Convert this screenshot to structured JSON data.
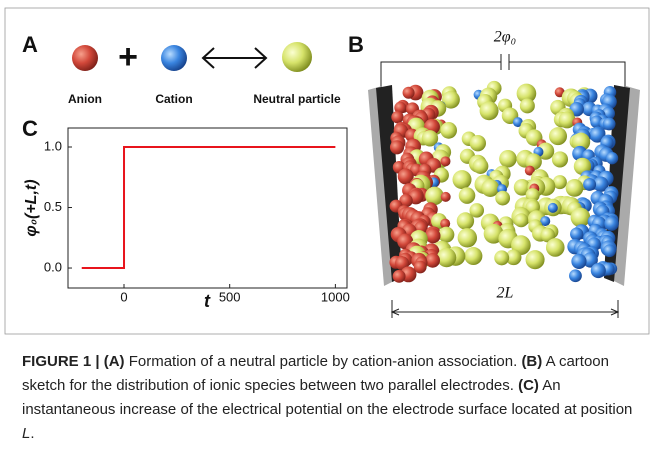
{
  "panels": {
    "A": {
      "label": "A",
      "anion": "Anion",
      "cation": "Cation",
      "neutral": "Neutral particle"
    },
    "B": {
      "label": "B",
      "voltage": "2φ₀",
      "distance": "2L"
    },
    "C": {
      "label": "C"
    }
  },
  "chart_data": {
    "type": "line",
    "xlabel": "t",
    "ylabel": "φ₀(+L,t)",
    "series": [
      {
        "color": "#e8141c",
        "x": [
          -200,
          0,
          0,
          1000
        ],
        "values": [
          0,
          0,
          1,
          1
        ]
      }
    ],
    "xlim": [
      -265,
      1055
    ],
    "ylim": [
      -0.165,
      1.157
    ],
    "xticks": [
      0,
      500,
      1000
    ],
    "yticks": [
      {
        "value": 0,
        "label": "0.0"
      },
      {
        "value": 0.5,
        "label": "0.5"
      },
      {
        "value": 1,
        "label": "1.0"
      }
    ]
  },
  "caption": {
    "label": "FIGURE 1 |",
    "parts": [
      {
        "tag": "(A)",
        "text": "Formation of a neutral particle by cation-anion association."
      },
      {
        "tag": "(B)",
        "text": "A cartoon sketch for the distribution of ionic species between two parallel electrodes."
      },
      {
        "tag": "(C)",
        "text": "An instantaneous increase of the electrical potential on the electrode surface located at position",
        "variable": "L",
        "end": "."
      }
    ]
  }
}
